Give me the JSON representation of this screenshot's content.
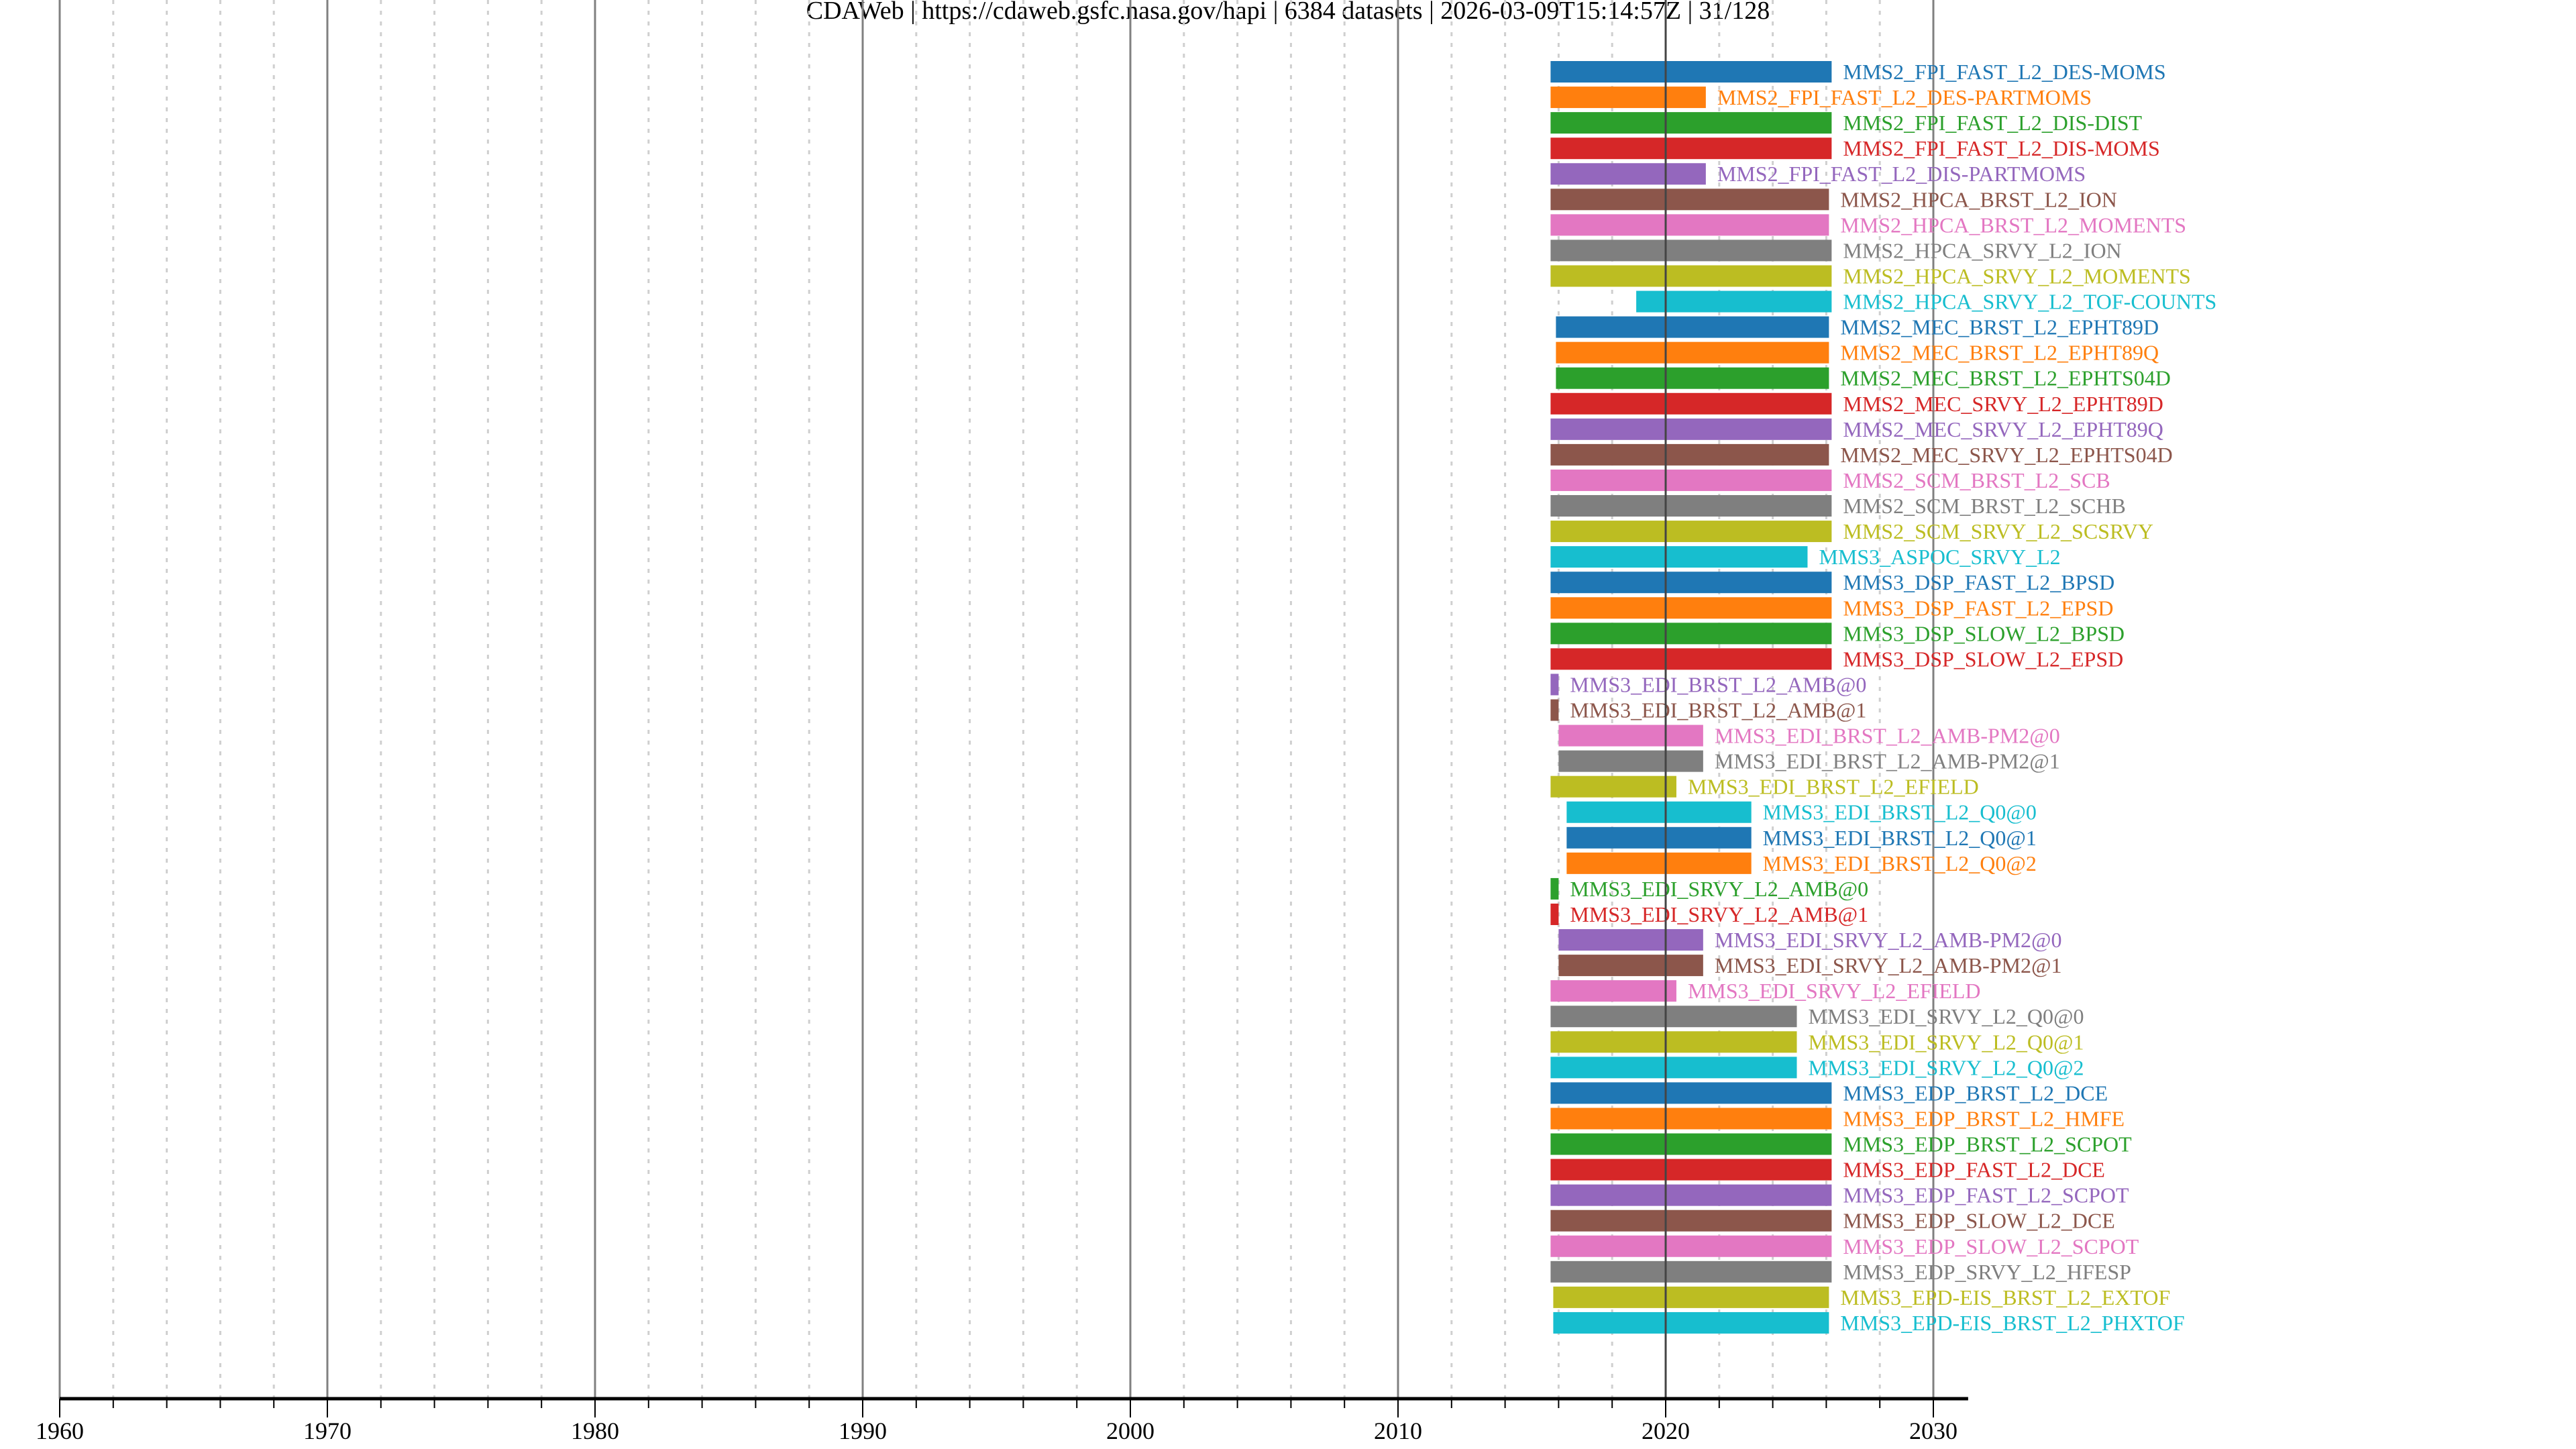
{
  "header": {
    "source": "CDAWeb",
    "url": "https://cdaweb.gsfc.nasa.gov/hapi",
    "count": "6384 datasets",
    "timestamp": "2026-03-09T15:14:57Z",
    "page": "31/128"
  },
  "chart_data": {
    "type": "bar",
    "orientation": "horizontal-timeline",
    "xlabel": "",
    "ylabel": "",
    "xlim": [
      1960,
      2031.3
    ],
    "x_ticks": [
      "1960",
      "1970",
      "1980",
      "1990",
      "2000",
      "2010",
      "2020",
      "2030"
    ],
    "grid": true,
    "palette": [
      "#1f77b4",
      "#ff7f0e",
      "#2ca02c",
      "#d62728",
      "#9467bd",
      "#8c564b",
      "#e377c2",
      "#7f7f7f",
      "#bcbd22",
      "#17becf"
    ],
    "series": [
      {
        "name": "MMS2_FPI_FAST_L2_DES-MOMS",
        "start": 2015.7,
        "end": 2026.2
      },
      {
        "name": "MMS2_FPI_FAST_L2_DES-PARTMOMS",
        "start": 2015.7,
        "end": 2021.5
      },
      {
        "name": "MMS2_FPI_FAST_L2_DIS-DIST",
        "start": 2015.7,
        "end": 2026.2
      },
      {
        "name": "MMS2_FPI_FAST_L2_DIS-MOMS",
        "start": 2015.7,
        "end": 2026.2
      },
      {
        "name": "MMS2_FPI_FAST_L2_DIS-PARTMOMS",
        "start": 2015.7,
        "end": 2021.5
      },
      {
        "name": "MMS2_HPCA_BRST_L2_ION",
        "start": 2015.7,
        "end": 2026.1
      },
      {
        "name": "MMS2_HPCA_BRST_L2_MOMENTS",
        "start": 2015.7,
        "end": 2026.1
      },
      {
        "name": "MMS2_HPCA_SRVY_L2_ION",
        "start": 2015.7,
        "end": 2026.2
      },
      {
        "name": "MMS2_HPCA_SRVY_L2_MOMENTS",
        "start": 2015.7,
        "end": 2026.2
      },
      {
        "name": "MMS2_HPCA_SRVY_L2_TOF-COUNTS",
        "start": 2018.9,
        "end": 2026.2
      },
      {
        "name": "MMS2_MEC_BRST_L2_EPHT89D",
        "start": 2015.9,
        "end": 2026.1
      },
      {
        "name": "MMS2_MEC_BRST_L2_EPHT89Q",
        "start": 2015.9,
        "end": 2026.1
      },
      {
        "name": "MMS2_MEC_BRST_L2_EPHTS04D",
        "start": 2015.9,
        "end": 2026.1
      },
      {
        "name": "MMS2_MEC_SRVY_L2_EPHT89D",
        "start": 2015.7,
        "end": 2026.2
      },
      {
        "name": "MMS2_MEC_SRVY_L2_EPHT89Q",
        "start": 2015.7,
        "end": 2026.2
      },
      {
        "name": "MMS2_MEC_SRVY_L2_EPHTS04D",
        "start": 2015.7,
        "end": 2026.1
      },
      {
        "name": "MMS2_SCM_BRST_L2_SCB",
        "start": 2015.7,
        "end": 2026.2
      },
      {
        "name": "MMS2_SCM_BRST_L2_SCHB",
        "start": 2015.7,
        "end": 2026.2
      },
      {
        "name": "MMS2_SCM_SRVY_L2_SCSRVY",
        "start": 2015.7,
        "end": 2026.2
      },
      {
        "name": "MMS3_ASPOC_SRVY_L2",
        "start": 2015.7,
        "end": 2025.3
      },
      {
        "name": "MMS3_DSP_FAST_L2_BPSD",
        "start": 2015.7,
        "end": 2026.2
      },
      {
        "name": "MMS3_DSP_FAST_L2_EPSD",
        "start": 2015.7,
        "end": 2026.2
      },
      {
        "name": "MMS3_DSP_SLOW_L2_BPSD",
        "start": 2015.7,
        "end": 2026.2
      },
      {
        "name": "MMS3_DSP_SLOW_L2_EPSD",
        "start": 2015.7,
        "end": 2026.2
      },
      {
        "name": "MMS3_EDI_BRST_L2_AMB@0",
        "start": 2015.7,
        "end": 2016.0
      },
      {
        "name": "MMS3_EDI_BRST_L2_AMB@1",
        "start": 2015.7,
        "end": 2016.0
      },
      {
        "name": "MMS3_EDI_BRST_L2_AMB-PM2@0",
        "start": 2016.0,
        "end": 2021.4
      },
      {
        "name": "MMS3_EDI_BRST_L2_AMB-PM2@1",
        "start": 2016.0,
        "end": 2021.4
      },
      {
        "name": "MMS3_EDI_BRST_L2_EFIELD",
        "start": 2015.7,
        "end": 2020.4
      },
      {
        "name": "MMS3_EDI_BRST_L2_Q0@0",
        "start": 2016.3,
        "end": 2023.2
      },
      {
        "name": "MMS3_EDI_BRST_L2_Q0@1",
        "start": 2016.3,
        "end": 2023.2
      },
      {
        "name": "MMS3_EDI_BRST_L2_Q0@2",
        "start": 2016.3,
        "end": 2023.2
      },
      {
        "name": "MMS3_EDI_SRVY_L2_AMB@0",
        "start": 2015.7,
        "end": 2016.0
      },
      {
        "name": "MMS3_EDI_SRVY_L2_AMB@1",
        "start": 2015.7,
        "end": 2016.0
      },
      {
        "name": "MMS3_EDI_SRVY_L2_AMB-PM2@0",
        "start": 2016.0,
        "end": 2021.4
      },
      {
        "name": "MMS3_EDI_SRVY_L2_AMB-PM2@1",
        "start": 2016.0,
        "end": 2021.4
      },
      {
        "name": "MMS3_EDI_SRVY_L2_EFIELD",
        "start": 2015.7,
        "end": 2020.4
      },
      {
        "name": "MMS3_EDI_SRVY_L2_Q0@0",
        "start": 2015.7,
        "end": 2024.9
      },
      {
        "name": "MMS3_EDI_SRVY_L2_Q0@1",
        "start": 2015.7,
        "end": 2024.9
      },
      {
        "name": "MMS3_EDI_SRVY_L2_Q0@2",
        "start": 2015.7,
        "end": 2024.9
      },
      {
        "name": "MMS3_EDP_BRST_L2_DCE",
        "start": 2015.7,
        "end": 2026.2
      },
      {
        "name": "MMS3_EDP_BRST_L2_HMFE",
        "start": 2015.7,
        "end": 2026.2
      },
      {
        "name": "MMS3_EDP_BRST_L2_SCPOT",
        "start": 2015.7,
        "end": 2026.2
      },
      {
        "name": "MMS3_EDP_FAST_L2_DCE",
        "start": 2015.7,
        "end": 2026.2
      },
      {
        "name": "MMS3_EDP_FAST_L2_SCPOT",
        "start": 2015.7,
        "end": 2026.2
      },
      {
        "name": "MMS3_EDP_SLOW_L2_DCE",
        "start": 2015.7,
        "end": 2026.2
      },
      {
        "name": "MMS3_EDP_SLOW_L2_SCPOT",
        "start": 2015.7,
        "end": 2026.2
      },
      {
        "name": "MMS3_EDP_SRVY_L2_HFESP",
        "start": 2015.7,
        "end": 2026.2
      },
      {
        "name": "MMS3_EPD-EIS_BRST_L2_EXTOF",
        "start": 2015.8,
        "end": 2026.1
      },
      {
        "name": "MMS3_EPD-EIS_BRST_L2_PHXTOF",
        "start": 2015.8,
        "end": 2026.1
      }
    ]
  }
}
